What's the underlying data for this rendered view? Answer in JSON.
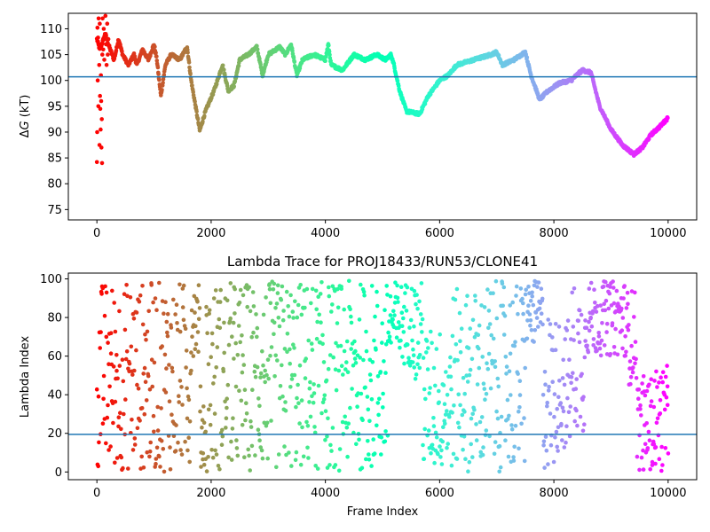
{
  "chart_data": [
    {
      "type": "scatter",
      "title": "",
      "xlabel": "",
      "ylabel": "ΔG (kT)",
      "ylabel_prefix": "Δ",
      "ylabel_var": "G",
      "ylabel_unit": " (kT)",
      "xlim": [
        -500,
        10500
      ],
      "ylim": [
        73,
        113
      ],
      "xticks": [
        0,
        2000,
        4000,
        6000,
        8000,
        10000
      ],
      "xtick_labels": [
        "0",
        "2000",
        "4000",
        "6000",
        "8000",
        "10000"
      ],
      "yticks": [
        75,
        80,
        85,
        90,
        95,
        100,
        105,
        110
      ],
      "ytick_labels": [
        "75",
        "80",
        "85",
        "90",
        "95",
        "100",
        "105",
        "110"
      ],
      "hline": 100.7,
      "hline_color": "#1f77b4",
      "colormap": "rainbow",
      "trace_keypoints": [
        [
          0,
          108
        ],
        [
          50,
          106
        ],
        [
          150,
          109
        ],
        [
          200,
          107
        ],
        [
          300,
          104
        ],
        [
          380,
          108
        ],
        [
          450,
          105
        ],
        [
          550,
          103
        ],
        [
          650,
          105
        ],
        [
          700,
          103
        ],
        [
          800,
          106
        ],
        [
          900,
          104
        ],
        [
          1000,
          107
        ],
        [
          1050,
          104
        ],
        [
          1120,
          97
        ],
        [
          1200,
          103
        ],
        [
          1300,
          105
        ],
        [
          1450,
          104
        ],
        [
          1580,
          106.5
        ],
        [
          1650,
          100
        ],
        [
          1800,
          90.3
        ],
        [
          1900,
          94
        ],
        [
          2050,
          98
        ],
        [
          2200,
          103
        ],
        [
          2300,
          98
        ],
        [
          2400,
          99
        ],
        [
          2500,
          104
        ],
        [
          2650,
          105
        ],
        [
          2800,
          106.5
        ],
        [
          2900,
          101
        ],
        [
          3000,
          105
        ],
        [
          3200,
          106.5
        ],
        [
          3300,
          105
        ],
        [
          3400,
          107
        ],
        [
          3500,
          101
        ],
        [
          3600,
          104
        ],
        [
          3800,
          105
        ],
        [
          4000,
          104
        ],
        [
          4050,
          107
        ],
        [
          4100,
          103
        ],
        [
          4300,
          102
        ],
        [
          4500,
          105
        ],
        [
          4700,
          104
        ],
        [
          4900,
          105
        ],
        [
          5050,
          104
        ],
        [
          5150,
          105
        ],
        [
          5200,
          103
        ],
        [
          5300,
          98
        ],
        [
          5420,
          94
        ],
        [
          5650,
          93.5
        ],
        [
          5800,
          97
        ],
        [
          6000,
          100
        ],
        [
          6150,
          101
        ],
        [
          6300,
          103
        ],
        [
          6600,
          104
        ],
        [
          6900,
          105
        ],
        [
          7000,
          105.5
        ],
        [
          7100,
          103
        ],
        [
          7300,
          104
        ],
        [
          7500,
          105.5
        ],
        [
          7600,
          101
        ],
        [
          7750,
          96.3
        ],
        [
          7900,
          98
        ],
        [
          8100,
          99.5
        ],
        [
          8300,
          100
        ],
        [
          8450,
          101.5
        ],
        [
          8500,
          102
        ],
        [
          8650,
          101.5
        ],
        [
          8800,
          95
        ],
        [
          9000,
          90.5
        ],
        [
          9200,
          87.5
        ],
        [
          9400,
          85.7
        ],
        [
          9550,
          87
        ],
        [
          9700,
          89.5
        ],
        [
          9850,
          91
        ],
        [
          10000,
          92.8
        ]
      ],
      "early_scatter": [
        [
          0,
          84.2
        ],
        [
          5,
          90
        ],
        [
          10,
          110.2
        ],
        [
          15,
          100
        ],
        [
          20,
          108.3
        ],
        [
          25,
          95
        ],
        [
          30,
          112
        ],
        [
          40,
          103
        ],
        [
          45,
          87.5
        ],
        [
          50,
          111
        ],
        [
          55,
          97
        ],
        [
          60,
          94.5
        ],
        [
          65,
          90.5
        ],
        [
          70,
          101
        ],
        [
          75,
          96
        ],
        [
          80,
          87
        ],
        [
          85,
          92.5
        ],
        [
          90,
          84
        ],
        [
          95,
          105
        ],
        [
          100,
          112
        ],
        [
          110,
          106
        ],
        [
          120,
          110
        ],
        [
          130,
          104
        ],
        [
          140,
          109
        ],
        [
          150,
          112.5
        ],
        [
          160,
          107
        ],
        [
          170,
          103
        ],
        [
          180,
          111
        ],
        [
          190,
          105
        ],
        [
          200,
          108
        ]
      ]
    },
    {
      "type": "scatter",
      "title": "Lambda Trace for PROJ18433/RUN53/CLONE41",
      "xlabel": "Frame Index",
      "ylabel": "Lambda Index",
      "xlim": [
        -500,
        10500
      ],
      "ylim": [
        -4,
        103
      ],
      "xticks": [
        0,
        2000,
        4000,
        6000,
        8000,
        10000
      ],
      "xtick_labels": [
        "0",
        "2000",
        "4000",
        "6000",
        "8000",
        "10000"
      ],
      "yticks": [
        0,
        20,
        40,
        60,
        80,
        100
      ],
      "ytick_labels": [
        "0",
        "20",
        "40",
        "60",
        "80",
        "100"
      ],
      "hline": 19.5,
      "hline_color": "#1f77b4",
      "colormap": "rainbow",
      "sample_step": 8,
      "density_segments": [
        [
          0,
          250,
          0,
          99
        ],
        [
          250,
          1650,
          0,
          99
        ],
        [
          1650,
          1800,
          60,
          99
        ],
        [
          1800,
          1900,
          0,
          45
        ],
        [
          1900,
          2100,
          0,
          99
        ],
        [
          2100,
          2400,
          0,
          99
        ],
        [
          2400,
          5100,
          0,
          99
        ],
        [
          5100,
          5550,
          55,
          99
        ],
        [
          5550,
          5700,
          45,
          99
        ],
        [
          5700,
          6200,
          0,
          75
        ],
        [
          6200,
          6800,
          0,
          95
        ],
        [
          6800,
          7500,
          0,
          99
        ],
        [
          7500,
          7800,
          65,
          99
        ],
        [
          7800,
          8000,
          0,
          85
        ],
        [
          8000,
          8300,
          10,
          80
        ],
        [
          8300,
          8550,
          20,
          99
        ],
        [
          8550,
          9250,
          60,
          99
        ],
        [
          9250,
          9450,
          45,
          95
        ],
        [
          9450,
          9750,
          0,
          50
        ],
        [
          9750,
          10000,
          0,
          55
        ]
      ]
    }
  ]
}
